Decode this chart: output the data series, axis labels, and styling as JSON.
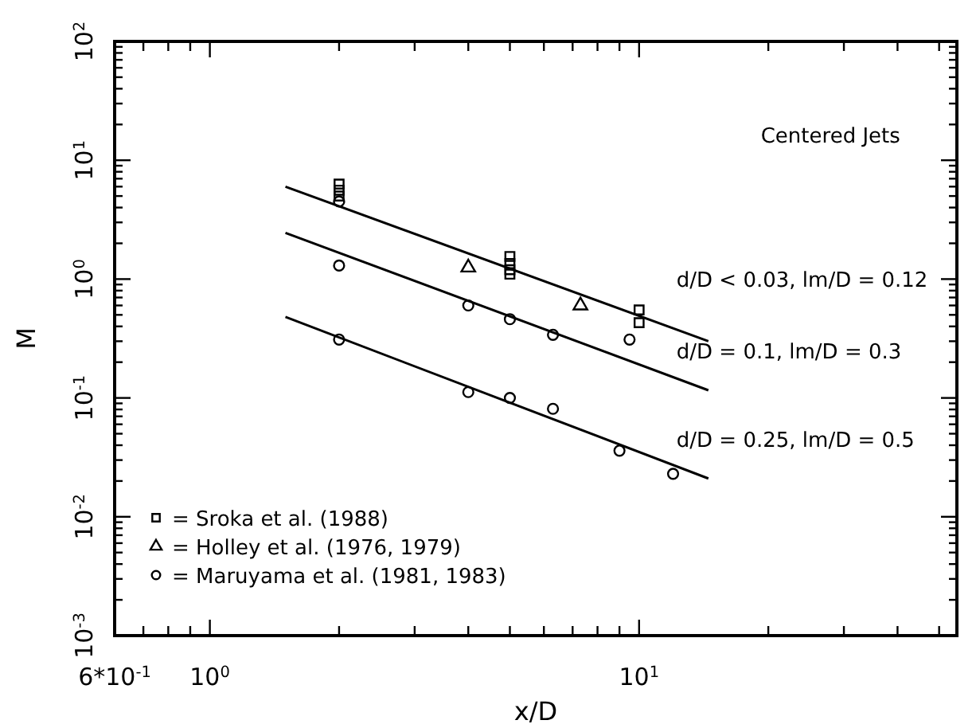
{
  "chart_data": {
    "type": "scatter",
    "xlabel": "x/D",
    "ylabel": "M",
    "log": "xy",
    "xlim": [
      0.6,
      55
    ],
    "ylim": [
      0.001,
      100
    ],
    "xticks": [
      {
        "value": 0.6,
        "label": "6*10$^{-1}$"
      },
      {
        "value": 0.7,
        "label": null
      },
      {
        "value": 0.8,
        "label": null
      },
      {
        "value": 0.9,
        "label": null
      },
      {
        "value": 1,
        "label": "10$^{0}$"
      },
      {
        "value": 2,
        "label": null
      },
      {
        "value": 3,
        "label": null
      },
      {
        "value": 4,
        "label": null
      },
      {
        "value": 5,
        "label": null
      },
      {
        "value": 6,
        "label": null
      },
      {
        "value": 7,
        "label": null
      },
      {
        "value": 8,
        "label": null
      },
      {
        "value": 9,
        "label": null
      },
      {
        "value": 10,
        "label": "10$^{1}$"
      },
      {
        "value": 20,
        "label": null
      },
      {
        "value": 30,
        "label": null
      },
      {
        "value": 40,
        "label": null
      },
      {
        "value": 50,
        "label": null
      }
    ],
    "yticks": [
      {
        "value": 0.001,
        "label": "10$^{-3}$"
      },
      {
        "value": 0.002,
        "label": null
      },
      {
        "value": 0.003,
        "label": null
      },
      {
        "value": 0.004,
        "label": null
      },
      {
        "value": 0.005,
        "label": null
      },
      {
        "value": 0.006,
        "label": null
      },
      {
        "value": 0.007,
        "label": null
      },
      {
        "value": 0.008,
        "label": null
      },
      {
        "value": 0.009,
        "label": null
      },
      {
        "value": 0.01,
        "label": "10$^{-2}$"
      },
      {
        "value": 0.02,
        "label": null
      },
      {
        "value": 0.03,
        "label": null
      },
      {
        "value": 0.04,
        "label": null
      },
      {
        "value": 0.05,
        "label": null
      },
      {
        "value": 0.06,
        "label": null
      },
      {
        "value": 0.07,
        "label": null
      },
      {
        "value": 0.08,
        "label": null
      },
      {
        "value": 0.09,
        "label": null
      },
      {
        "value": 0.1,
        "label": "10$^{-1}$"
      },
      {
        "value": 0.2,
        "label": null
      },
      {
        "value": 0.3,
        "label": null
      },
      {
        "value": 0.4,
        "label": null
      },
      {
        "value": 0.5,
        "label": null
      },
      {
        "value": 0.6,
        "label": null
      },
      {
        "value": 0.7,
        "label": null
      },
      {
        "value": 0.8,
        "label": null
      },
      {
        "value": 0.9,
        "label": null
      },
      {
        "value": 1,
        "label": "10$^{0}$"
      },
      {
        "value": 2,
        "label": null
      },
      {
        "value": 3,
        "label": null
      },
      {
        "value": 4,
        "label": null
      },
      {
        "value": 5,
        "label": null
      },
      {
        "value": 6,
        "label": null
      },
      {
        "value": 7,
        "label": null
      },
      {
        "value": 8,
        "label": null
      },
      {
        "value": 9,
        "label": null
      },
      {
        "value": 10,
        "label": "10$^{1}$"
      },
      {
        "value": 20,
        "label": null
      },
      {
        "value": 30,
        "label": null
      },
      {
        "value": 40,
        "label": null
      },
      {
        "value": 50,
        "label": null
      },
      {
        "value": 60,
        "label": null
      },
      {
        "value": 70,
        "label": null
      },
      {
        "value": 80,
        "label": null
      },
      {
        "value": 90,
        "label": null
      },
      {
        "value": 100,
        "label": "10$^{2}$"
      }
    ],
    "grid": false,
    "legend": "bottom left",
    "series": [
      {
        "name": "= Sroka et al. (1988)",
        "color": "#000000",
        "marker": "square",
        "x": [
          2,
          2,
          2,
          5,
          5,
          5,
          5,
          10,
          10
        ],
        "values": [
          6.3,
          5.6,
          5.0,
          1.55,
          1.35,
          1.2,
          1.1,
          0.55,
          0.43
        ]
      },
      {
        "name": "= Holley et al. (1976, 1979)",
        "color": "#000000",
        "marker": "triangle",
        "x": [
          4,
          7.3
        ],
        "values": [
          1.25,
          0.6
        ]
      },
      {
        "name": "= Maruyama et al. (1981, 1983)",
        "color": "#000000",
        "marker": "circle",
        "x": [
          2,
          2,
          4,
          5,
          6.3,
          9.5,
          2,
          4,
          5,
          6.3,
          9,
          12
        ],
        "values": [
          4.5,
          1.3,
          0.6,
          0.46,
          0.34,
          0.31,
          0.31,
          0.112,
          0.1,
          0.081,
          0.036,
          0.023
        ]
      },
      {
        "type": "line",
        "color": "#000000",
        "marker": "none",
        "line_style": "solid",
        "x": [
          1.5,
          14.5
        ],
        "values": [
          6.0,
          0.3
        ]
      },
      {
        "type": "line",
        "color": "#000000",
        "marker": "none",
        "line_style": "solid",
        "x": [
          1.5,
          14.5
        ],
        "values": [
          2.45,
          0.116
        ]
      },
      {
        "type": "line",
        "color": "#000000",
        "marker": "none",
        "line_style": "solid",
        "x": [
          1.5,
          14.5
        ],
        "values": [
          0.48,
          0.021
        ]
      }
    ],
    "annotations": [
      "Centered Jets",
      "d/D < 0.03, lm/D = 0.12",
      "d/D = 0.1, lm/D = 0.3",
      "d/D = 0.25, lm/D = 0.5"
    ]
  }
}
